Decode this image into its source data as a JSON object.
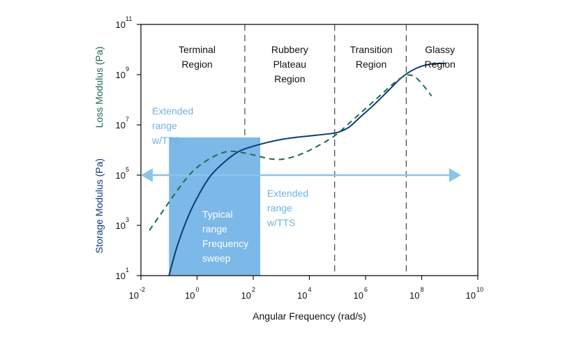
{
  "chart_data": {
    "type": "line",
    "xlabel": "Angular Frequency (rad/s)",
    "ylabel_storage": "Storage Modulus (Pa)",
    "ylabel_loss": "Loss Modulus (Pa)",
    "x_scale": "log",
    "y_scale": "log",
    "xlim_exp": [
      -2,
      10
    ],
    "ylim_exp": [
      1,
      11
    ],
    "x_ticks": [
      {
        "base": "10",
        "exp": "-2",
        "v": -2
      },
      {
        "base": "10",
        "exp": "0",
        "v": 0
      },
      {
        "base": "10",
        "exp": "2",
        "v": 2
      },
      {
        "base": "10",
        "exp": "4",
        "v": 4
      },
      {
        "base": "10",
        "exp": "6",
        "v": 6
      },
      {
        "base": "10",
        "exp": "8",
        "v": 8
      },
      {
        "base": "10",
        "exp": "10",
        "v": 10
      }
    ],
    "y_ticks": [
      {
        "base": "10",
        "exp": "1",
        "v": 1
      },
      {
        "base": "10",
        "exp": "3",
        "v": 3
      },
      {
        "base": "10",
        "exp": "5",
        "v": 5
      },
      {
        "base": "10",
        "exp": "7",
        "v": 7
      },
      {
        "base": "10",
        "exp": "9",
        "v": 9
      },
      {
        "base": "10",
        "exp": "11",
        "v": 11
      }
    ],
    "regions": [
      {
        "lines": [
          "Terminal",
          "Region"
        ],
        "x_center_exp": 0.0
      },
      {
        "lines": [
          "Rubbery",
          "Plateau",
          "Region"
        ],
        "x_center_exp": 3.3
      },
      {
        "lines": [
          "Transition",
          "Region"
        ],
        "x_center_exp": 6.2
      },
      {
        "lines": [
          "Glassy",
          "Region"
        ],
        "x_center_exp": 8.65
      }
    ],
    "region_boundaries_exp": [
      1.7,
      4.9,
      7.45
    ],
    "series": [
      {
        "name": "Storage Modulus (Pa)",
        "color": "#0b3b7a",
        "style": "solid",
        "points": [
          [
            -1.0,
            1.0
          ],
          [
            -0.7,
            2.2
          ],
          [
            -0.3,
            3.4
          ],
          [
            0.1,
            4.3
          ],
          [
            0.5,
            5.0
          ],
          [
            1.0,
            5.55
          ],
          [
            1.5,
            5.95
          ],
          [
            2.0,
            6.15
          ],
          [
            2.5,
            6.3
          ],
          [
            3.0,
            6.42
          ],
          [
            3.5,
            6.5
          ],
          [
            4.0,
            6.56
          ],
          [
            4.5,
            6.62
          ],
          [
            5.0,
            6.7
          ],
          [
            5.4,
            6.9
          ],
          [
            5.8,
            7.3
          ],
          [
            6.3,
            7.8
          ],
          [
            6.8,
            8.35
          ],
          [
            7.3,
            8.9
          ],
          [
            7.8,
            9.25
          ],
          [
            8.3,
            9.42
          ],
          [
            8.85,
            9.45
          ]
        ]
      },
      {
        "name": "Loss Modulus (Pa)",
        "color": "#1b6b4a",
        "style": "dashed",
        "points": [
          [
            -1.7,
            2.8
          ],
          [
            -1.2,
            3.6
          ],
          [
            -0.7,
            4.4
          ],
          [
            -0.2,
            5.1
          ],
          [
            0.3,
            5.55
          ],
          [
            0.8,
            5.85
          ],
          [
            1.2,
            5.95
          ],
          [
            1.7,
            5.88
          ],
          [
            2.2,
            5.75
          ],
          [
            2.6,
            5.65
          ],
          [
            3.0,
            5.63
          ],
          [
            3.4,
            5.72
          ],
          [
            3.8,
            5.88
          ],
          [
            4.2,
            6.1
          ],
          [
            4.6,
            6.35
          ],
          [
            5.0,
            6.65
          ],
          [
            5.4,
            7.05
          ],
          [
            5.8,
            7.45
          ],
          [
            6.2,
            7.85
          ],
          [
            6.6,
            8.25
          ],
          [
            7.0,
            8.65
          ],
          [
            7.4,
            8.95
          ],
          [
            7.7,
            8.95
          ],
          [
            8.0,
            8.65
          ],
          [
            8.35,
            8.15
          ]
        ]
      }
    ],
    "typical_range": {
      "x_from_exp": -1.0,
      "x_to_exp": 2.25,
      "y_from_exp": 1.0,
      "y_to_exp": 6.5,
      "color": "#7cb8e8",
      "lines": [
        "Typical",
        "range",
        "Frequency",
        "sweep"
      ]
    },
    "extended_arrow": {
      "x_from_exp": -2.0,
      "x_to_exp": 9.4,
      "y_exp": 5.0,
      "color": "#8ac4ea"
    },
    "annotations": [
      {
        "lines": [
          "Extended",
          "range",
          "w/TTS"
        ],
        "color": "#6fb3e0"
      },
      {
        "lines": [
          "Extended",
          "range",
          "w/TTS"
        ],
        "color": "#6fb3e0"
      }
    ],
    "ylabel_storage_color": "#0b3b7a",
    "ylabel_loss_color": "#1b6b4a",
    "grid": false
  }
}
